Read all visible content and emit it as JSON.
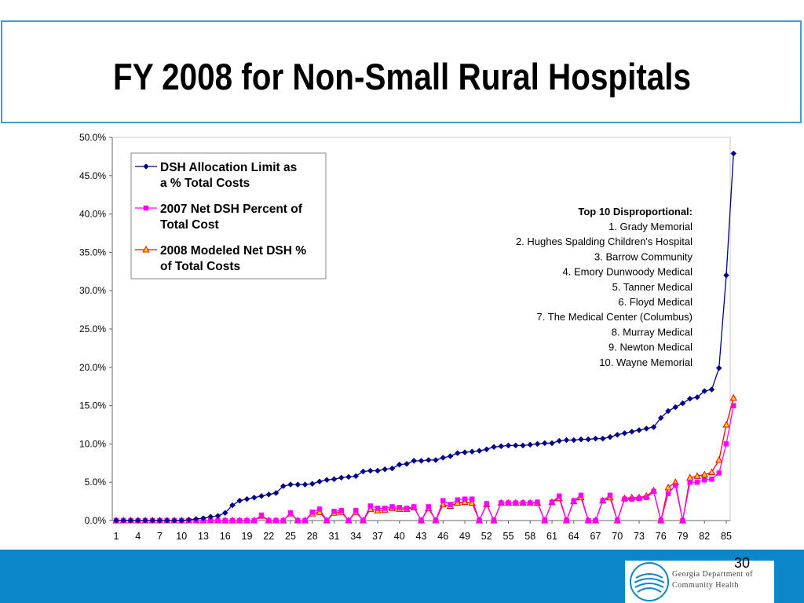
{
  "slide": {
    "title": "FY 2008 for Non-Small Rural Hospitals",
    "page_number": "30",
    "org_logo_text": [
      "Georgia Department of",
      "Community Health"
    ]
  },
  "annotation": {
    "heading": "Top 10 Disproportional:",
    "items": [
      "1. Grady Memorial",
      "2. Hughes Spalding Children's Hospital",
      "3. Barrow Community",
      "4. Emory Dunwoody Medical",
      "5. Tanner Medical",
      "6. Floyd Medical",
      "7. The Medical Center (Columbus)",
      "8. Murray Medical",
      "9. Newton Medical",
      "10. Wayne Memorial"
    ]
  },
  "chart_data": {
    "type": "line",
    "x_ticks": [
      "1",
      "4",
      "7",
      "10",
      "13",
      "16",
      "19",
      "22",
      "25",
      "28",
      "31",
      "34",
      "37",
      "40",
      "43",
      "46",
      "49",
      "52",
      "55",
      "58",
      "61",
      "64",
      "67",
      "70",
      "73",
      "76",
      "79",
      "82",
      "85"
    ],
    "y_ticks": [
      "0.0%",
      "5.0%",
      "10.0%",
      "15.0%",
      "20.0%",
      "25.0%",
      "30.0%",
      "35.0%",
      "40.0%",
      "45.0%",
      "50.0%"
    ],
    "ylim": [
      0,
      50
    ],
    "xlim": [
      1,
      85
    ],
    "legend_position": "top-left",
    "series": [
      {
        "name": "DSH Allocation Limit as a % Total Costs",
        "color": "#00008b",
        "marker": "diamond",
        "values": [
          0,
          0,
          0,
          0,
          0,
          0,
          0,
          0,
          0,
          0,
          0.1,
          0.2,
          0.3,
          0.5,
          0.6,
          1.0,
          2.0,
          2.6,
          2.8,
          3.0,
          3.2,
          3.4,
          3.6,
          4.5,
          4.7,
          4.7,
          4.7,
          4.8,
          5.1,
          5.3,
          5.4,
          5.6,
          5.7,
          5.8,
          6.4,
          6.5,
          6.5,
          6.7,
          6.8,
          7.3,
          7.4,
          7.8,
          7.8,
          7.9,
          7.9,
          8.2,
          8.4,
          8.8,
          8.9,
          9.0,
          9.1,
          9.3,
          9.6,
          9.7,
          9.8,
          9.8,
          9.8,
          9.9,
          10.0,
          10.1,
          10.1,
          10.4,
          10.5,
          10.5,
          10.6,
          10.6,
          10.7,
          10.7,
          10.9,
          11.2,
          11.4,
          11.6,
          11.8,
          12.0,
          12.2,
          13.4,
          14.3,
          14.8,
          15.3,
          15.9,
          16.1,
          16.9,
          17.1,
          19.9,
          32.0,
          47.9
        ]
      },
      {
        "name": "2007 Net DSH Percent of Total Cost",
        "color": "#ff00ff",
        "marker": "square",
        "values": [
          0,
          0,
          0,
          0,
          0,
          0,
          0,
          0,
          0,
          0,
          0,
          0,
          0,
          0,
          0,
          0,
          0,
          0,
          0,
          0,
          0.7,
          0,
          0,
          0,
          1.0,
          0,
          0,
          1.1,
          1.5,
          0,
          1.2,
          1.3,
          0,
          1.3,
          0,
          1.9,
          1.6,
          1.6,
          1.8,
          1.7,
          1.6,
          1.8,
          0,
          1.8,
          0,
          2.6,
          2.1,
          2.7,
          2.8,
          2.8,
          0,
          2.2,
          0,
          2.3,
          2.3,
          2.3,
          2.3,
          2.3,
          2.4,
          0,
          2.4,
          3.2,
          0,
          2.6,
          3.3,
          0,
          0,
          2.6,
          3.3,
          0,
          2.8,
          2.8,
          2.9,
          3.0,
          3.8,
          0,
          3.5,
          4.6,
          0,
          5.0,
          5.0,
          5.3,
          5.4,
          6.2,
          10.0,
          15.0
        ]
      },
      {
        "name": "2008 Modeled Net DSH % of Total Costs",
        "color": "#ff0000",
        "marker": "triangle",
        "values": [
          0,
          0,
          0,
          0,
          0,
          0,
          0,
          0,
          0,
          0,
          0,
          0,
          0,
          0,
          0,
          0,
          0,
          0,
          0,
          0,
          0.6,
          0,
          0,
          0,
          0.9,
          0,
          0,
          0.9,
          1.1,
          0,
          1.0,
          1.1,
          0,
          1.1,
          0,
          1.5,
          1.3,
          1.4,
          1.6,
          1.5,
          1.5,
          1.7,
          0,
          1.6,
          0,
          2.1,
          1.9,
          2.3,
          2.4,
          2.3,
          0,
          2.1,
          0,
          2.3,
          2.3,
          2.3,
          2.3,
          2.3,
          2.3,
          0,
          2.4,
          2.9,
          0,
          2.5,
          3.0,
          0,
          0,
          2.6,
          3.0,
          0,
          2.9,
          3.0,
          3.0,
          3.2,
          3.9,
          0,
          4.3,
          5.0,
          0,
          5.6,
          5.8,
          6.0,
          6.3,
          7.9,
          12.5,
          16.0
        ]
      }
    ]
  }
}
